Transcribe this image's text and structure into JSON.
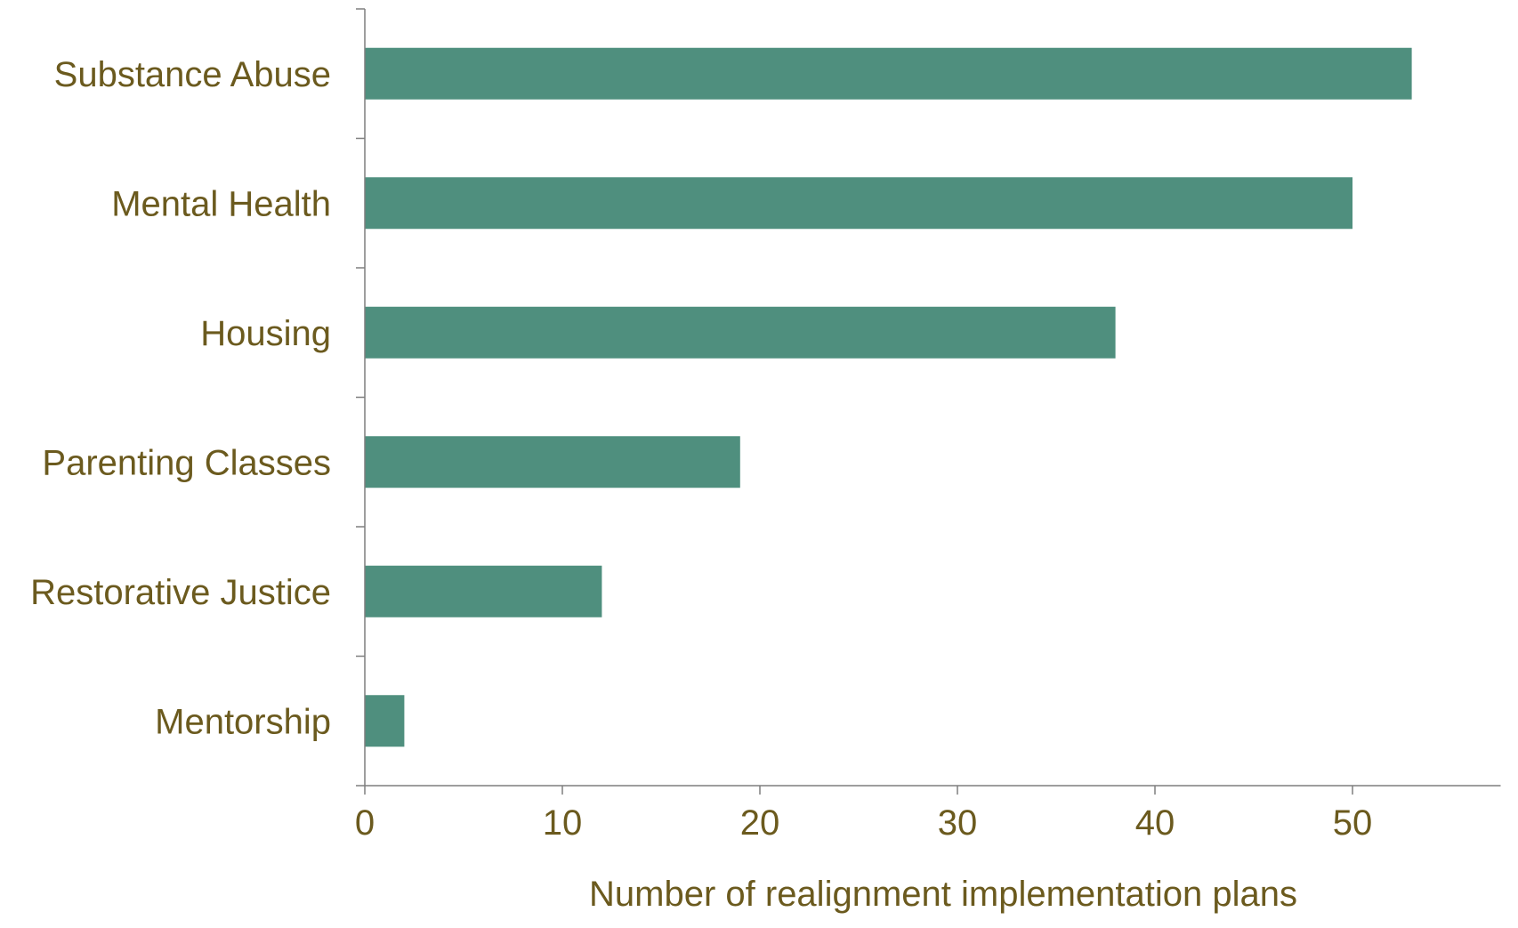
{
  "colors": {
    "bar": "#4f8f7e",
    "axis": "#7f7f7f",
    "text": "#6b5a1e",
    "background": "#ffffff"
  },
  "chart_data": {
    "type": "bar",
    "orientation": "horizontal",
    "title": "",
    "categories": [
      "Substance Abuse",
      "Mental Health",
      "Housing",
      "Parenting Classes",
      "Restorative Justice",
      "Mentorship"
    ],
    "values": [
      53,
      50,
      38,
      19,
      12,
      2
    ],
    "xlabel": "Number of realignment implementation plans",
    "ylabel": "",
    "xlim": [
      0,
      57.5
    ],
    "xticks": [
      0,
      10,
      20,
      30,
      40,
      50
    ],
    "grid": false,
    "legend": "none"
  }
}
